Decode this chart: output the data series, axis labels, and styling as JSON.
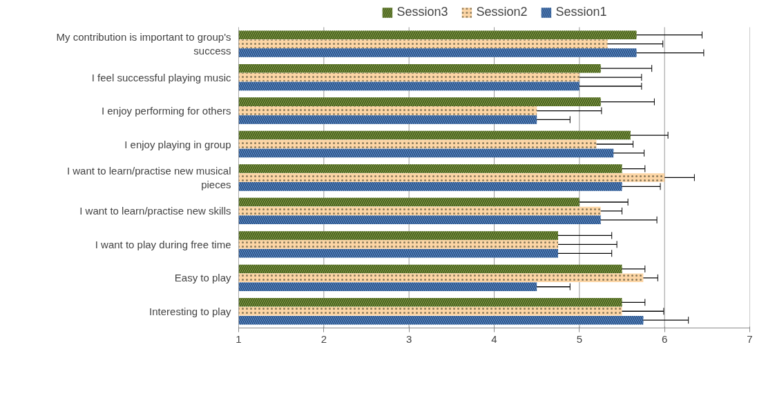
{
  "chart_data": {
    "type": "bar",
    "orientation": "horizontal",
    "categories": [
      "My contribution is important to group's success",
      "I feel successful playing music",
      "I enjoy performing for others",
      "I enjoy playing in group",
      "I want to learn/practise new musical pieces",
      "I want to learn/practise new skills",
      "I want to play during free time",
      "Easy to play",
      "Interesting to play"
    ],
    "series": [
      {
        "name": "Session3",
        "color": "#77933c",
        "values": [
          5.67,
          5.25,
          5.25,
          5.6,
          5.5,
          5.0,
          4.75,
          5.5,
          5.5
        ],
        "errors": [
          0.77,
          0.6,
          0.63,
          0.44,
          0.27,
          0.57,
          0.63,
          0.27,
          0.27
        ]
      },
      {
        "name": "Session2",
        "color": "#fcd5a5",
        "values": [
          5.33,
          5.0,
          4.5,
          5.2,
          6.0,
          5.25,
          4.75,
          5.75,
          5.5
        ],
        "errors": [
          0.65,
          0.73,
          0.76,
          0.43,
          0.35,
          0.25,
          0.69,
          0.17,
          0.49
        ]
      },
      {
        "name": "Session1",
        "color": "#4f81bd",
        "values": [
          5.67,
          5.0,
          4.5,
          5.4,
          5.5,
          5.25,
          4.75,
          4.5,
          5.75
        ],
        "errors": [
          0.79,
          0.73,
          0.39,
          0.36,
          0.45,
          0.66,
          0.63,
          0.39,
          0.53
        ]
      }
    ],
    "xlim": [
      1,
      7
    ],
    "xticks": [
      1,
      2,
      3,
      4,
      5,
      6,
      7
    ],
    "grid": "x",
    "legend": "top"
  }
}
